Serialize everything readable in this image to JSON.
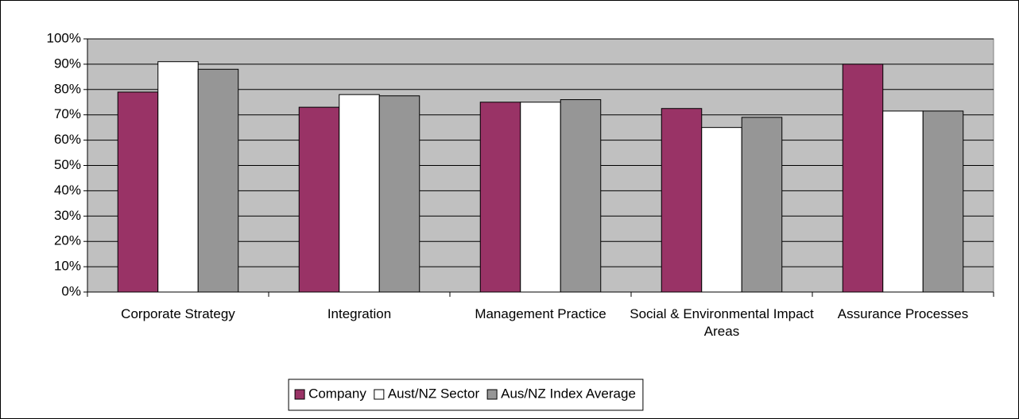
{
  "chart_data": {
    "type": "bar",
    "categories": [
      "Corporate Strategy",
      "Integration",
      "Management Practice",
      "Social & Environmental Impact Areas",
      "Assurance Processes"
    ],
    "series": [
      {
        "name": "Company",
        "color": "#993366",
        "values": [
          79,
          73,
          75,
          72.5,
          90
        ]
      },
      {
        "name": "Aust/NZ Sector",
        "color": "#ffffff",
        "values": [
          91,
          78,
          75,
          65,
          71.5
        ]
      },
      {
        "name": "Aus/NZ Index Average",
        "color": "#969696",
        "values": [
          88,
          77.5,
          76,
          69,
          71.5
        ]
      }
    ],
    "ylim": [
      0,
      100
    ],
    "yticks": [
      {
        "value": 0,
        "label": "0%"
      },
      {
        "value": 10,
        "label": "10%"
      },
      {
        "value": 20,
        "label": "20%"
      },
      {
        "value": 30,
        "label": "30%"
      },
      {
        "value": 40,
        "label": "40%"
      },
      {
        "value": 50,
        "label": "50%"
      },
      {
        "value": 60,
        "label": "60%"
      },
      {
        "value": 70,
        "label": "70%"
      },
      {
        "value": 80,
        "label": "80%"
      },
      {
        "value": 90,
        "label": "90%"
      },
      {
        "value": 100,
        "label": "100%"
      }
    ],
    "grid": true,
    "legend": "bottom"
  }
}
